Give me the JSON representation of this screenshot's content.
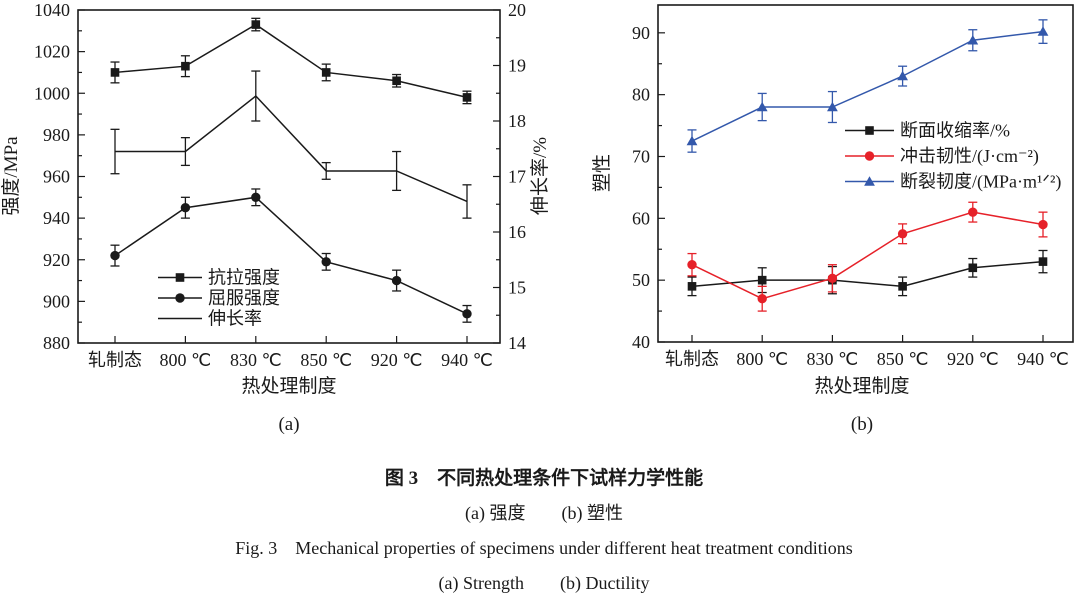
{
  "figure": {
    "caption_zh": "图 3　不同热处理条件下试样力学性能",
    "caption_sub_zh": "(a) 强度　　(b) 塑性",
    "caption_en": "Fig. 3　Mechanical properties of specimens under different heat treatment conditions",
    "caption_sub_en": "(a) Strength　　(b) Ductility"
  },
  "colors": {
    "black": "#1a1a1a",
    "red": "#e62129",
    "blue": "#3358ab"
  },
  "chart_data": [
    {
      "id": "a",
      "type": "line",
      "subplot_label": "(a)",
      "xlabel": "热处理制度",
      "categories": [
        "轧制态",
        "800 ℃",
        "830 ℃",
        "850 ℃",
        "920 ℃",
        "940 ℃"
      ],
      "grid": false,
      "legend_position": "inside-bottom-left",
      "left_axis": {
        "label": "强度/MPa",
        "min": 880,
        "max": 1040,
        "major_step": 20,
        "minor_step": 10
      },
      "right_axis": {
        "label": "伸长率/%",
        "min": 14,
        "max": 20,
        "major_step": 1,
        "minor_step": 0.5
      },
      "series": [
        {
          "name": "抗拉强度",
          "axis": "left",
          "marker": "square",
          "color": "#1a1a1a",
          "values": [
            1010,
            1013,
            1033,
            1010,
            1006,
            998
          ],
          "errors": [
            5,
            5,
            3,
            4,
            3,
            3
          ]
        },
        {
          "name": "屈服强度",
          "axis": "left",
          "marker": "circle",
          "color": "#1a1a1a",
          "values": [
            922,
            945,
            950,
            919,
            910,
            894
          ],
          "errors": [
            5,
            5,
            4,
            4,
            5,
            4
          ]
        },
        {
          "name": "伸长率",
          "axis": "right",
          "marker": "none",
          "color": "#1a1a1a",
          "values": [
            17.45,
            17.45,
            18.45,
            17.1,
            17.1,
            16.55
          ],
          "errors": [
            0.4,
            0.25,
            0.45,
            0.15,
            0.35,
            0.3
          ]
        }
      ]
    },
    {
      "id": "b",
      "type": "line",
      "subplot_label": "(b)",
      "xlabel": "热处理制度",
      "categories": [
        "轧制态",
        "800 ℃",
        "830 ℃",
        "850 ℃",
        "920 ℃",
        "940 ℃"
      ],
      "grid": false,
      "legend_position": "inside-middle-right",
      "left_axis": {
        "label": "塑性",
        "min": 40,
        "max": 94.5,
        "major_step": 10,
        "minor_step": 5
      },
      "series": [
        {
          "name": "断面收缩率/%",
          "axis": "left",
          "marker": "square",
          "color": "#1a1a1a",
          "values": [
            49,
            50,
            50,
            49,
            52,
            53
          ],
          "errors": [
            1.5,
            2,
            2.2,
            1.5,
            1.5,
            1.8
          ]
        },
        {
          "name": "冲击韧性/(J·cm⁻²)",
          "axis": "left",
          "marker": "circle",
          "color": "#e62129",
          "values": [
            52.5,
            47,
            50.3,
            57.5,
            61,
            59
          ],
          "errors": [
            1.8,
            2,
            2.2,
            1.6,
            1.6,
            2
          ]
        },
        {
          "name": "断裂韧度/(MPa·m¹ᐟ²)",
          "axis": "left",
          "marker": "triangle",
          "color": "#3358ab",
          "values": [
            72.5,
            78,
            78,
            83,
            88.8,
            90.2
          ],
          "errors": [
            1.8,
            2.2,
            2.5,
            1.6,
            1.7,
            1.9
          ]
        }
      ]
    }
  ]
}
